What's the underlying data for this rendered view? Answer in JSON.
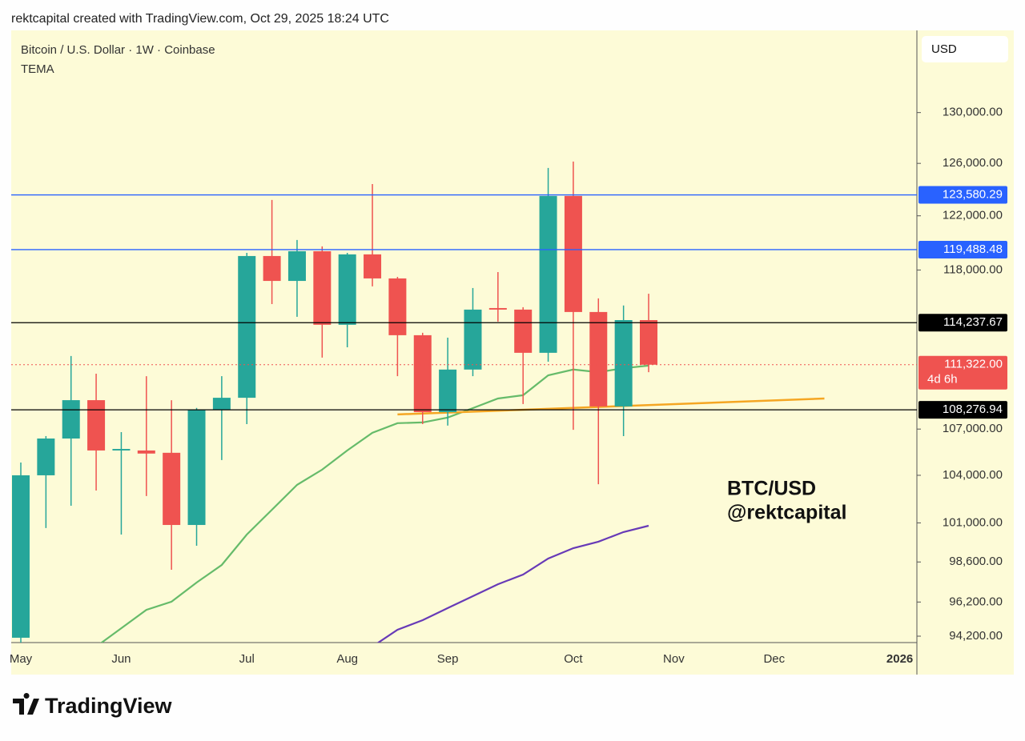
{
  "header": "rektcapital created with TradingView.com, Oct 29, 2025 18:24 UTC",
  "brand": "TradingView",
  "chart_data": {
    "type": "candlestick",
    "title": "Bitcoin / U.S. Dollar · 1W · Coinbase",
    "indicator": "TEMA",
    "currency": "USD",
    "annotation": [
      "BTC/USD",
      "@rektcapital"
    ],
    "log_scale": true,
    "up_color": "#26a69a",
    "down_color": "#ef5350",
    "categories": [
      "May",
      null,
      null,
      null,
      "Jun",
      null,
      null,
      null,
      null,
      "Jul",
      null,
      null,
      null,
      "Aug",
      null,
      null,
      null,
      "Sep",
      null,
      null,
      null,
      null,
      "Oct",
      null,
      null,
      null,
      "Nov",
      null,
      null,
      null,
      "Dec",
      null,
      null,
      null,
      null,
      "2026"
    ],
    "open": [
      94110,
      104000,
      106380,
      108920,
      105600,
      105600,
      105450,
      100870,
      108290,
      109080,
      119020,
      117210,
      119370,
      114090,
      119140,
      117390,
      113360,
      108120,
      110990,
      115270,
      115160,
      112140,
      123500,
      114990,
      108500,
      114420,
      null,
      null,
      null,
      null,
      null,
      null,
      null,
      null,
      null,
      null
    ],
    "high": [
      104820,
      106540,
      111920,
      110710,
      106800,
      110540,
      108920,
      108400,
      110540,
      119250,
      123200,
      120200,
      119730,
      119250,
      124410,
      117500,
      113530,
      113190,
      116700,
      117850,
      115330,
      125650,
      126140,
      115960,
      115450,
      116290,
      null,
      null,
      null,
      null,
      null,
      null,
      null,
      null,
      null,
      null
    ],
    "low": [
      93740,
      100680,
      102070,
      103030,
      100280,
      102680,
      98130,
      99590,
      104980,
      107330,
      115550,
      114650,
      111810,
      112520,
      116820,
      110540,
      107330,
      107230,
      110540,
      114310,
      108660,
      111530,
      106950,
      103430,
      106540,
      110810,
      null,
      null,
      null,
      null,
      null,
      null,
      null,
      null,
      null,
      null
    ],
    "close": [
      104000,
      106380,
      108920,
      105600,
      105700,
      105400,
      100870,
      108290,
      109080,
      119020,
      117210,
      119370,
      114090,
      119140,
      117390,
      113360,
      108120,
      110990,
      115160,
      115160,
      112140,
      123500,
      114990,
      108500,
      114420,
      111322,
      null,
      null,
      null,
      null,
      null,
      null,
      null,
      null,
      null,
      null
    ],
    "lines": [
      {
        "color": "#66bb6a",
        "values": [
          null,
          null,
          null,
          93600,
          94660,
          95740,
          96220,
          97360,
          98420,
          100280,
          101820,
          103390,
          104360,
          105600,
          106750,
          107390,
          107440,
          107760,
          108390,
          109030,
          109250,
          110600,
          110990,
          110810,
          111080,
          111260,
          null,
          null,
          null,
          null,
          null,
          null,
          null,
          null,
          null,
          null
        ]
      },
      {
        "color": "#673ab7",
        "values": [
          null,
          null,
          null,
          null,
          null,
          null,
          null,
          null,
          null,
          null,
          null,
          null,
          null,
          null,
          93600,
          94570,
          95130,
          95840,
          96550,
          97260,
          97840,
          98810,
          99440,
          99840,
          100430,
          100820,
          null,
          null,
          null,
          null,
          null,
          null,
          null,
          null,
          null,
          null
        ]
      }
    ],
    "trendline": {
      "color": "#f5a623",
      "values": [
        null,
        null,
        null,
        null,
        null,
        null,
        null,
        null,
        null,
        null,
        null,
        null,
        null,
        null,
        null,
        107970,
        null,
        null,
        null,
        null,
        null,
        null,
        null,
        null,
        null,
        null,
        null,
        null,
        null,
        null,
        null,
        null,
        109030,
        null,
        null,
        null
      ]
    },
    "levels": [
      {
        "value": 123580.29,
        "label": "123,580.29",
        "color": "#2962ff",
        "style": "solid"
      },
      {
        "value": 119488.48,
        "label": "119,488.48",
        "color": "#2962ff",
        "style": "solid"
      },
      {
        "value": 114237.67,
        "label": "114,237.67",
        "color": "#000000",
        "style": "solid"
      },
      {
        "value": 108276.94,
        "label": "108,276.94",
        "color": "#000000",
        "style": "solid"
      },
      {
        "value": 111322,
        "label": "111,322.00",
        "countdown": "4d 6h",
        "color": "#ef5350",
        "style": "dotted"
      }
    ],
    "ylim": [
      93830,
      136740
    ],
    "yticks": [
      {
        "value": 94200,
        "label": "94,200.00"
      },
      {
        "value": 96200,
        "label": "96,200.00"
      },
      {
        "value": 98600,
        "label": "98,600.00"
      },
      {
        "value": 101000,
        "label": "101,000.00"
      },
      {
        "value": 104000,
        "label": "104,000.00"
      },
      {
        "value": 107000,
        "label": "107,000.00"
      },
      {
        "value": 118000,
        "label": "118,000.00"
      },
      {
        "value": 122000,
        "label": "122,000.00"
      },
      {
        "value": 126000,
        "label": "126,000.00"
      },
      {
        "value": 130000,
        "label": "130,000.00"
      }
    ]
  }
}
